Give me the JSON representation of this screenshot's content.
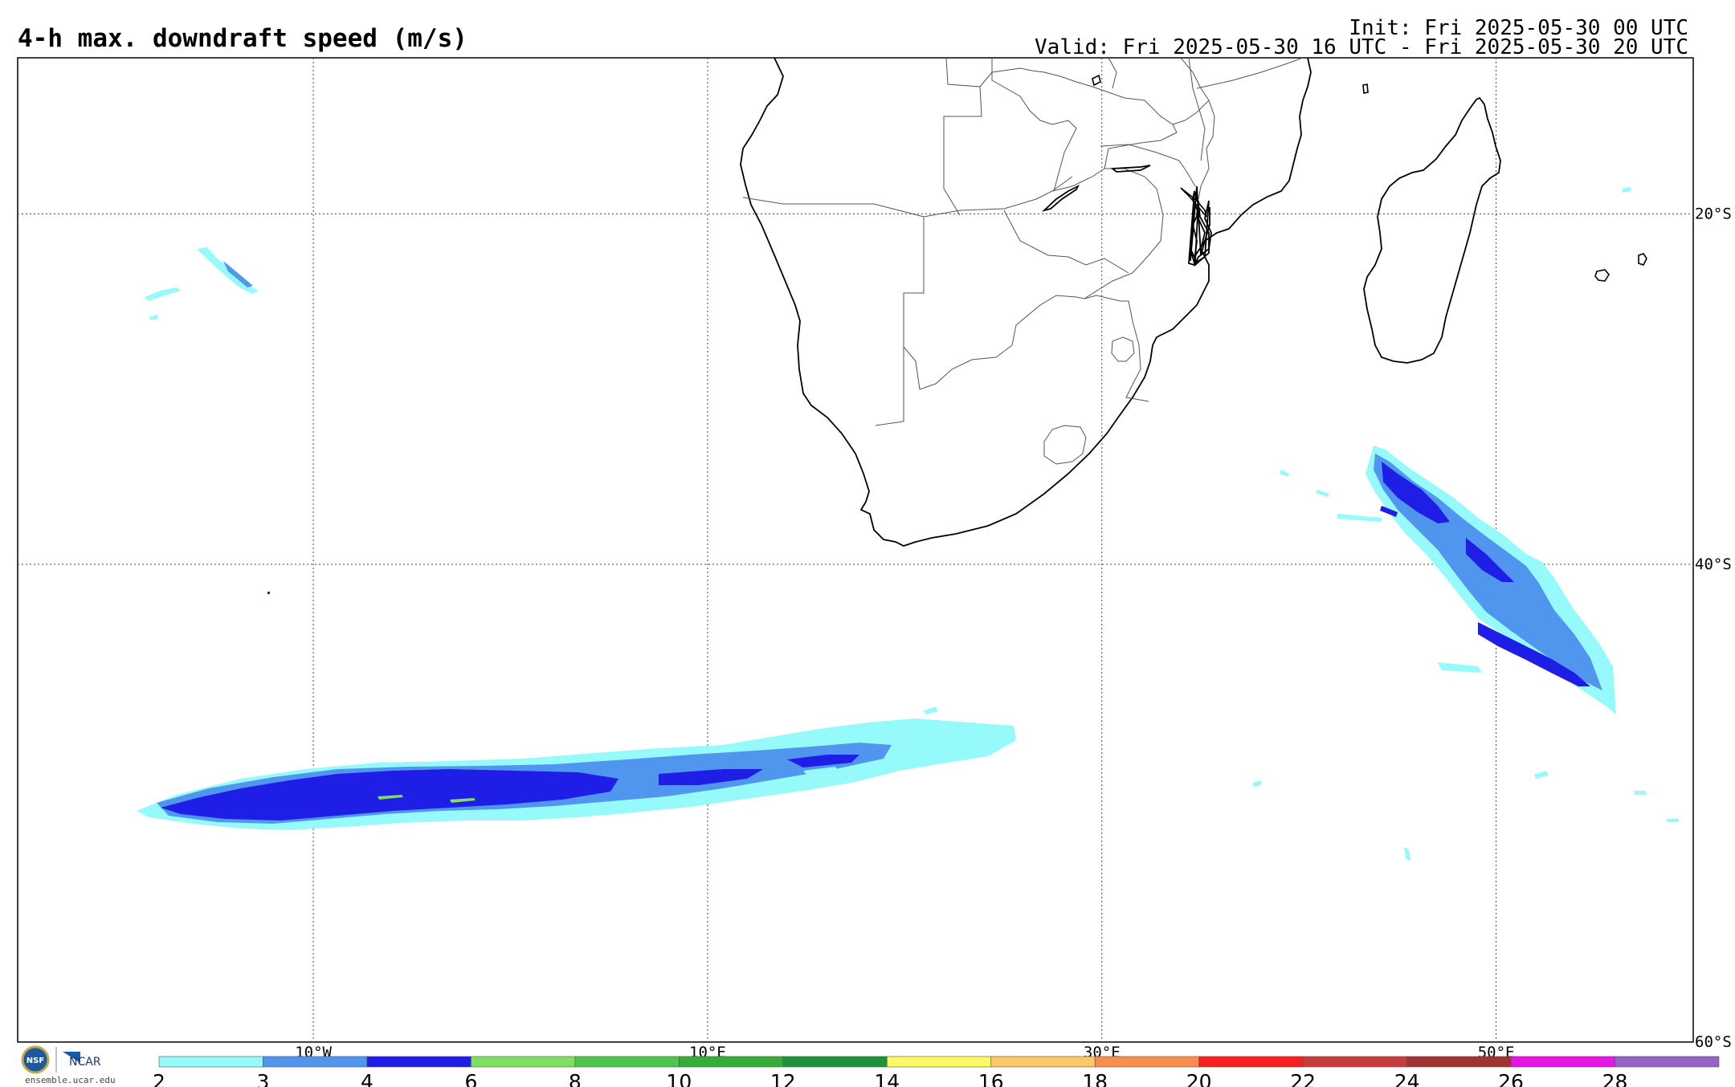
{
  "header": {
    "title": "4-h max. downdraft speed (m/s)",
    "init": "Init: Fri 2025-05-30 00 UTC",
    "valid": "Valid: Fri 2025-05-30 16 UTC - Fri 2025-05-30 20 UTC"
  },
  "map": {
    "lon_range": [
      -25,
      60
    ],
    "lat_range": [
      -60,
      -10
    ],
    "lon_gridlines": [
      {
        "lon": -10,
        "label": "10°W"
      },
      {
        "lon": 10,
        "label": "10°E"
      },
      {
        "lon": 30,
        "label": "30°E"
      },
      {
        "lon": 50,
        "label": "50°E"
      }
    ],
    "lat_gridlines": [
      {
        "lat": -20,
        "label": "20°S"
      },
      {
        "lat": -40,
        "label": "40°S"
      },
      {
        "lat": -60,
        "label": "60°S"
      }
    ]
  },
  "colorbar": {
    "ticks": [
      "2",
      "3",
      "4",
      "6",
      "8",
      "10",
      "12",
      "14",
      "16",
      "18",
      "20",
      "22",
      "24",
      "26",
      "28"
    ],
    "colors": [
      "#96fafa",
      "#5096ee",
      "#1e1ee6",
      "#7ee05e",
      "#4ec64e",
      "#36ad36",
      "#21913a",
      "#fafa64",
      "#fac864",
      "#fa8c50",
      "#f52020",
      "#c83c3c",
      "#a03232",
      "#e614e6",
      "#9664c8"
    ]
  },
  "branding": {
    "logo_nsf": "NSF",
    "logo_ncar": "NCAR",
    "site": "ensemble.ucar.edu"
  }
}
